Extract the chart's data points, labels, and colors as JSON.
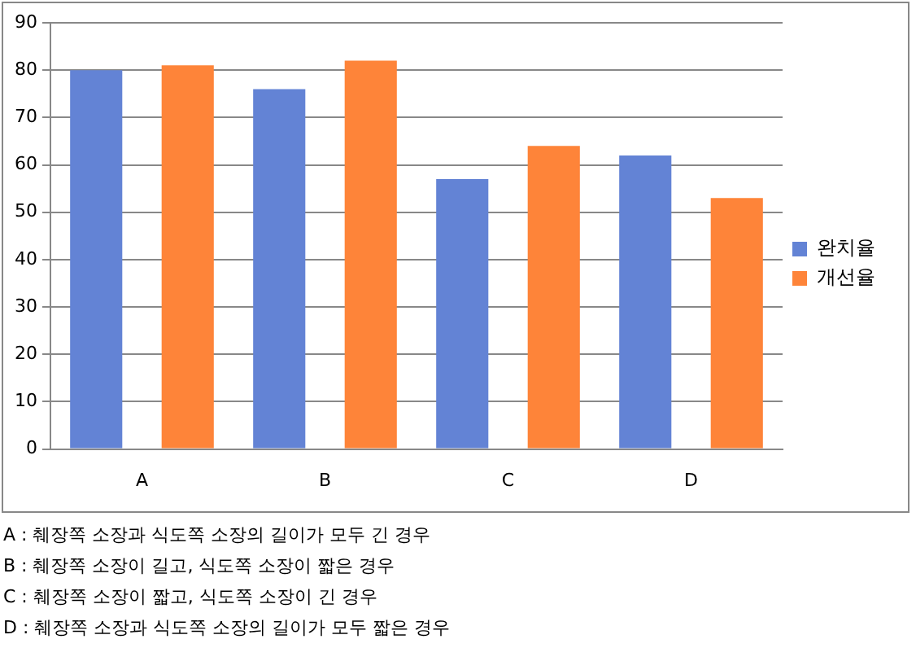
{
  "chart_data": {
    "type": "bar",
    "categories": [
      "A",
      "B",
      "C",
      "D"
    ],
    "series": [
      {
        "name": "완치율",
        "color": "#6383d5",
        "values": [
          80,
          76,
          57,
          62
        ]
      },
      {
        "name": "개선율",
        "color": "#fe8439",
        "values": [
          81,
          82,
          64,
          53
        ]
      }
    ],
    "ylim": [
      0,
      90
    ],
    "yticks": [
      0,
      10,
      20,
      30,
      40,
      50,
      60,
      70,
      80,
      90
    ],
    "grid": "y",
    "legend": "right",
    "annotations": [
      "A : 췌장쪽 소장과 식도쪽 소장의 길이가 모두 긴 경우",
      "B : 췌장쪽 소장이 길고, 식도쪽 소장이 짧은 경우",
      "C : 췌장쪽 소장이 짧고, 식도쪽 소장이 긴 경우",
      "D : 췌장쪽 소장과 식도쪽 소장의 길이가 모두 짧은 경우"
    ]
  }
}
